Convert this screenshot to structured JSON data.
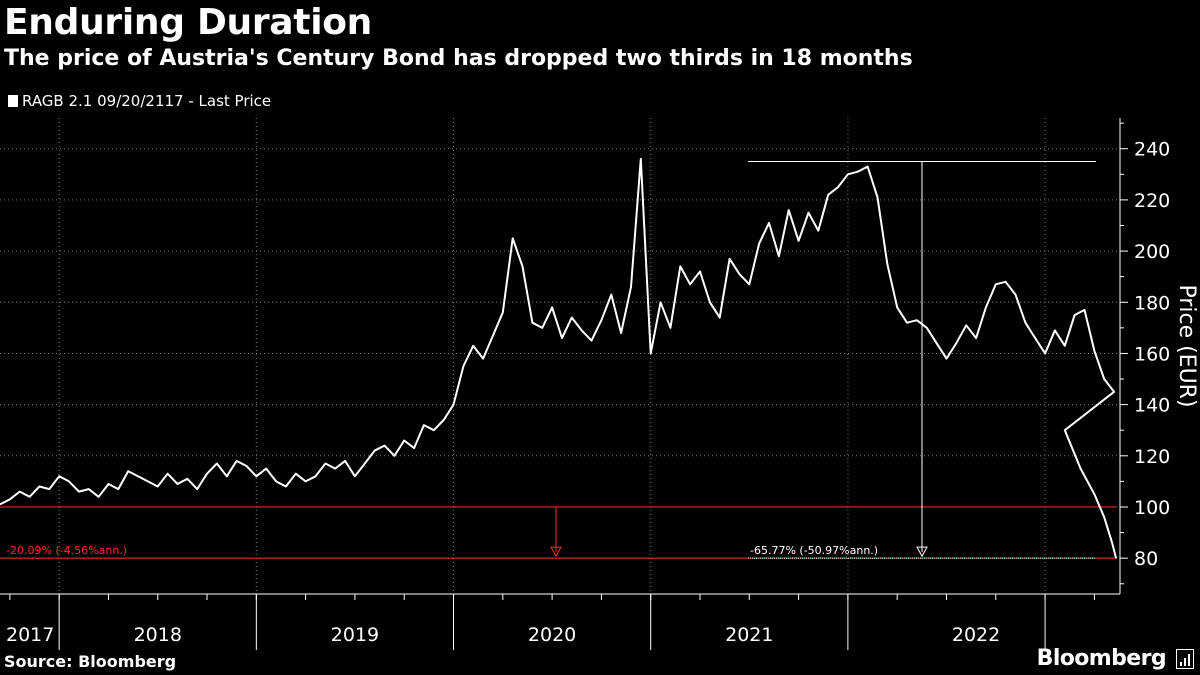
{
  "header": {
    "title": "Enduring Duration",
    "subtitle": "The price of Austria's Century Bond has dropped two thirds in 18 months"
  },
  "legend": {
    "label": "RAGB 2.1 09/20/2117 - Last Price"
  },
  "footer": {
    "source": "Source: Bloomberg",
    "brand": "Bloomberg"
  },
  "colors": {
    "background": "#000000",
    "line": "#ffffff",
    "grid": "#7a7a7a",
    "reference": "#ff2a2a"
  },
  "chart_data": {
    "type": "line",
    "title": "Enduring Duration",
    "subtitle": "The price of Austria's Century Bond has dropped two thirds in 18 months",
    "ylabel": "Price (EUR)",
    "xlabel": "",
    "ylim": [
      66,
      252
    ],
    "xlim": [
      2017.0,
      2022.68
    ],
    "yticks": [
      80,
      100,
      120,
      140,
      160,
      180,
      200,
      220,
      240
    ],
    "xtick_labels": [
      "2017",
      "2018",
      "2019",
      "2020",
      "2021",
      "2022"
    ],
    "year_boundaries": [
      2017.3,
      2018.3,
      2019.3,
      2020.3,
      2021.3,
      2022.3
    ],
    "grid": true,
    "series": [
      {
        "name": "RAGB 2.1 09/20/2117 - Last Price",
        "x": [
          2017.0,
          2017.05,
          2017.1,
          2017.15,
          2017.2,
          2017.25,
          2017.3,
          2017.35,
          2017.4,
          2017.45,
          2017.5,
          2017.55,
          2017.6,
          2017.65,
          2017.7,
          2017.75,
          2017.8,
          2017.85,
          2017.9,
          2017.95,
          2018.0,
          2018.05,
          2018.1,
          2018.15,
          2018.2,
          2018.25,
          2018.3,
          2018.35,
          2018.4,
          2018.45,
          2018.5,
          2018.55,
          2018.6,
          2018.65,
          2018.7,
          2018.75,
          2018.8,
          2018.85,
          2018.9,
          2018.95,
          2019.0,
          2019.05,
          2019.1,
          2019.15,
          2019.2,
          2019.25,
          2019.3,
          2019.35,
          2019.4,
          2019.45,
          2019.5,
          2019.55,
          2019.6,
          2019.65,
          2019.7,
          2019.75,
          2019.8,
          2019.85,
          2019.9,
          2019.95,
          2020.0,
          2020.05,
          2020.1,
          2020.15,
          2020.2,
          2020.25,
          2020.3,
          2020.35,
          2020.4,
          2020.45,
          2020.5,
          2020.55,
          2020.6,
          2020.65,
          2020.7,
          2020.75,
          2020.8,
          2020.85,
          2020.9,
          2020.95,
          2021.0,
          2021.05,
          2021.1,
          2021.15,
          2021.2,
          2021.25,
          2021.3,
          2021.35,
          2021.4,
          2021.45,
          2021.5,
          2021.55,
          2021.6,
          2021.65
        ],
        "values": [
          101,
          103,
          106,
          104,
          108,
          107,
          112,
          110,
          106,
          107,
          104,
          109,
          107,
          114,
          112,
          110,
          108,
          113,
          109,
          111,
          107,
          113,
          117,
          112,
          118,
          116,
          112,
          115,
          110,
          108,
          113,
          110,
          112,
          117,
          115,
          118,
          112,
          117,
          122,
          124,
          120,
          126,
          123,
          132,
          130,
          134,
          140,
          155,
          163,
          158,
          167,
          176,
          205,
          194,
          172,
          170,
          178,
          166,
          174,
          169,
          165,
          173,
          183,
          168,
          186,
          236,
          160,
          180,
          170,
          194,
          187,
          192,
          180,
          174,
          197,
          191,
          187,
          203,
          211,
          198,
          216,
          204,
          215,
          208,
          222,
          225,
          230,
          231,
          233,
          221,
          195,
          178,
          172,
          173
        ]
      }
    ],
    "series_tail": {
      "x": [
        2021.7,
        2021.75,
        2021.8,
        2021.85,
        2021.9,
        2021.95,
        2022.0,
        2022.05,
        2022.1,
        2022.15,
        2022.2,
        2022.25,
        2022.3,
        2022.35,
        2022.4,
        2022.45,
        2022.5,
        2022.55,
        2022.6,
        2022.65
      ],
      "values": [
        170,
        164,
        158,
        164,
        171,
        166,
        178,
        187,
        188,
        183,
        172,
        166,
        160,
        169,
        163,
        175,
        177,
        161,
        150,
        145
      ]
    },
    "annotations": [
      {
        "text": "-20.09% (-4.56%ann.)",
        "color": "#ff2a2a",
        "from_value": 100,
        "to_value": 80
      },
      {
        "text": "-65.77% (-50.97%ann.)",
        "color": "#ffffff",
        "from_value": 235,
        "to_value": 80
      }
    ],
    "reference_lines": [
      100,
      80
    ]
  }
}
